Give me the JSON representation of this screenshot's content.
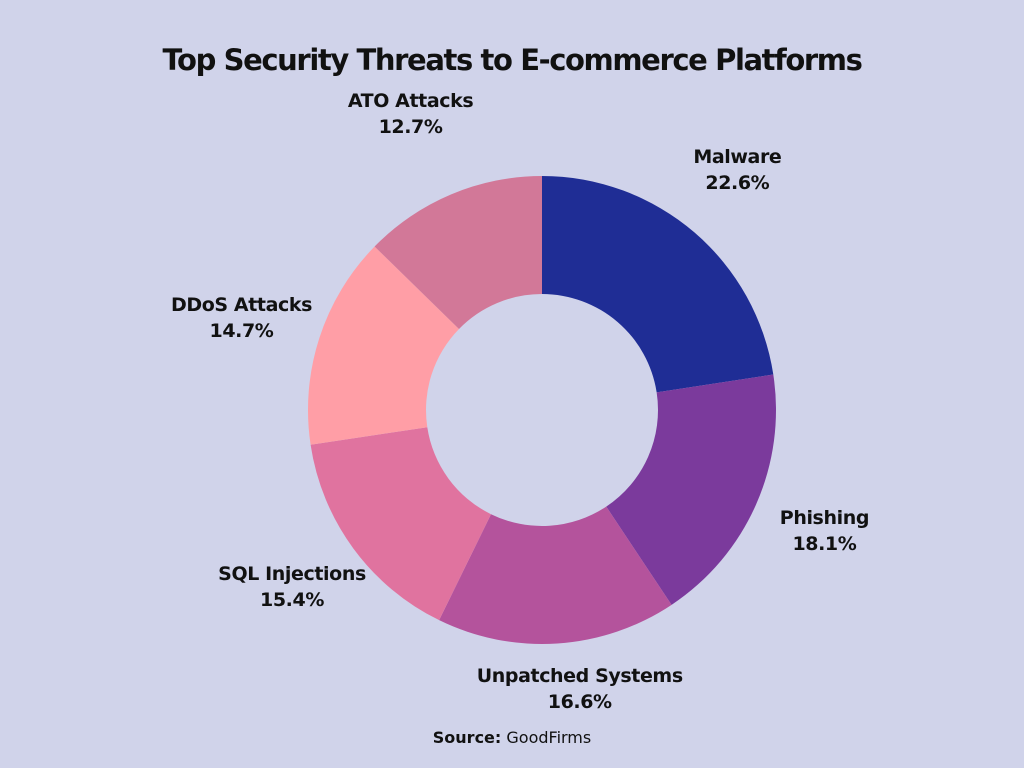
{
  "chart_data": {
    "type": "pie",
    "title": "Top Security Threats to E-commerce Platforms",
    "donut": true,
    "labels": [
      "Malware",
      "Phishing",
      "Unpatched Systems",
      "SQL Injections",
      "DDoS Attacks",
      "ATO Attacks"
    ],
    "values": [
      22.6,
      18.1,
      16.6,
      15.4,
      14.7,
      12.7
    ],
    "value_labels": [
      "22.6%",
      "18.1%",
      "16.6%",
      "15.4%",
      "14.7%",
      "12.7%"
    ],
    "colors": [
      "#1f2d95",
      "#7b3a9c",
      "#b4539c",
      "#e0739f",
      "#ff9ea6",
      "#d27898"
    ],
    "start_angle": "12 o'clock",
    "direction": "clockwise",
    "background": "#d0d3ea"
  },
  "source": {
    "label": "Source:",
    "name": "GoodFirms"
  }
}
